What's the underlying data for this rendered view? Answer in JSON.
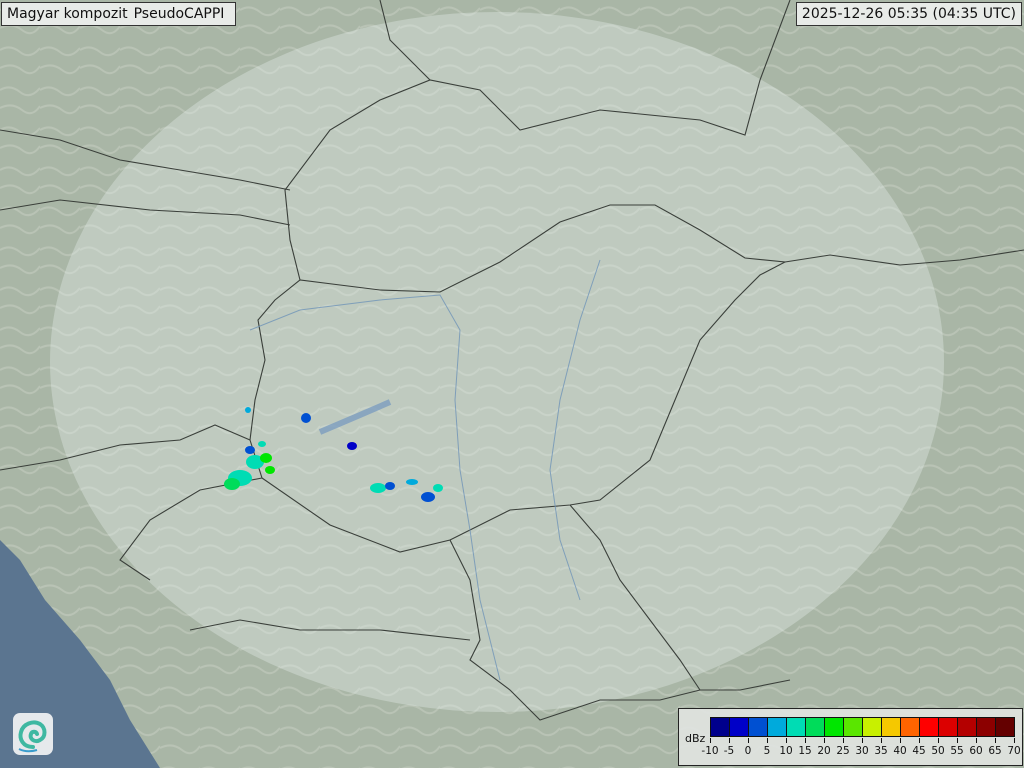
{
  "header": {
    "title_parts": [
      "Magyar kompozit",
      "PseudoCAPPI"
    ],
    "timestamp": "2025-12-26 05:35 (04:35 UTC)"
  },
  "legend": {
    "unit": "dBz",
    "ticks": [
      "-10",
      "-5",
      "0",
      "5",
      "10",
      "15",
      "20",
      "25",
      "30",
      "35",
      "40",
      "45",
      "50",
      "55",
      "60",
      "65",
      "70"
    ],
    "colors": [
      "#00008c",
      "#0000c8",
      "#0050d2",
      "#00aadc",
      "#00dcb4",
      "#00dc5a",
      "#00e600",
      "#5ae600",
      "#c8f000",
      "#f5c800",
      "#ff6400",
      "#ff0000",
      "#dc0000",
      "#b40000",
      "#8c0000",
      "#640000"
    ]
  },
  "map": {
    "land_color": "#a9b6a6",
    "sea_color": "#5b7590",
    "coverage_color": "#e8f0ee"
  },
  "logo": {
    "icon": "swirl-logo-icon"
  }
}
